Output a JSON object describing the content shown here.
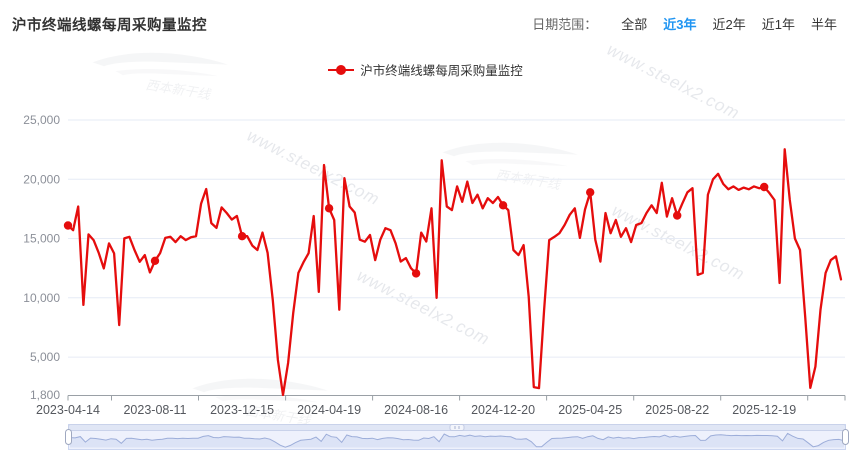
{
  "header": {
    "title": "沪市终端线螺每周采购量监控",
    "date_range": {
      "label": "日期范围：",
      "options": [
        {
          "label": "全部",
          "selected": false
        },
        {
          "label": "近3年",
          "selected": true
        },
        {
          "label": "近2年",
          "selected": false
        },
        {
          "label": "近1年",
          "selected": false
        },
        {
          "label": "半年",
          "selected": false
        }
      ],
      "selected_color": "#2095f2"
    }
  },
  "legend": {
    "label": "沪市终端线螺每周采购量监控",
    "color": "#e50d0d"
  },
  "watermark": {
    "text": "www.steelx2.com",
    "brand": "西本新干线"
  },
  "chart_data": {
    "type": "line",
    "series_name": "沪市终端线螺每周采购量监控",
    "line_color": "#e50d0d",
    "grid": true,
    "legend_position": "top",
    "y_min": 1800,
    "y_max": 25000,
    "y_min_label": "1,800",
    "y_tick_values": [
      25000,
      20000,
      15000,
      10000,
      5000
    ],
    "y_tick_labels": [
      "25,000",
      "20,000",
      "15,000",
      "10,000",
      "5,000"
    ],
    "x_tick_labels": [
      "2023-04-14",
      "2023-08-11",
      "2023-12-15",
      "2024-04-19",
      "2024-08-16",
      "2024-12-20",
      "2025-04-25",
      "2025-08-22",
      "2025-12-19"
    ],
    "x_tick_indices": [
      0,
      17,
      34,
      51,
      68,
      85,
      102,
      119,
      136
    ],
    "marked_point_indices": [
      0,
      17,
      34,
      51,
      68,
      85,
      102,
      119,
      136
    ],
    "values": [
      16100,
      15700,
      17700,
      9400,
      15350,
      14870,
      13800,
      12480,
      14590,
      13750,
      7700,
      15010,
      15150,
      14030,
      13040,
      13600,
      12140,
      13120,
      13770,
      15050,
      15150,
      14700,
      15200,
      14870,
      15100,
      15200,
      17950,
      19180,
      16300,
      15900,
      17630,
      17150,
      16600,
      16900,
      15200,
      15200,
      14400,
      14030,
      15500,
      13800,
      9800,
      4750,
      1800,
      4500,
      8700,
      12100,
      13000,
      13760,
      16900,
      10500,
      21200,
      17550,
      16560,
      9000,
      20100,
      17700,
      17200,
      14900,
      14730,
      15300,
      13180,
      14900,
      15870,
      15700,
      14600,
      13050,
      13350,
      12500,
      12060,
      15500,
      14750,
      17550,
      10000,
      21600,
      17700,
      17400,
      19400,
      18100,
      19800,
      18000,
      18700,
      17550,
      18400,
      18000,
      18500,
      17800,
      17400,
      14030,
      13600,
      14450,
      10100,
      2470,
      2380,
      8960,
      14870,
      15140,
      15450,
      16140,
      17000,
      17550,
      15050,
      17450,
      18900,
      14900,
      13050,
      17150,
      15450,
      16560,
      15150,
      15870,
      14700,
      16140,
      16300,
      17150,
      17800,
      17150,
      19700,
      16850,
      18400,
      16940,
      17950,
      18900,
      19250,
      11930,
      12100,
      18700,
      20000,
      20460,
      19600,
      19150,
      19400,
      19100,
      19300,
      19150,
      19400,
      19250,
      19350,
      18850,
      18250,
      11250,
      22530,
      18250,
      15000,
      14030,
      8400,
      2400,
      4200,
      9000,
      12100,
      13180,
      13500,
      11550
    ]
  }
}
